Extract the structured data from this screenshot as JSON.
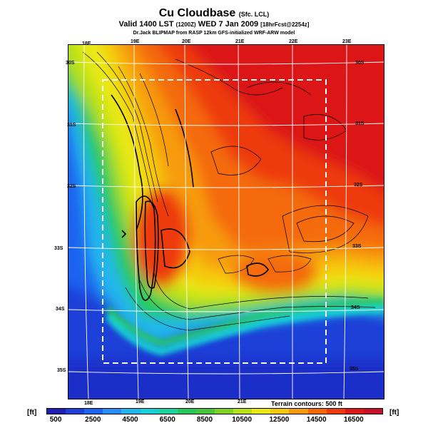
{
  "header": {
    "title": "Cu Cloudbase",
    "title_suffix": "(Sfc. LCL)",
    "subtitle_main": "Valid 1400 LST",
    "subtitle_zulu": "(1200Z)",
    "subtitle_date": "WED 7 Jan 2009",
    "subtitle_fcst": "[18hrFcst@2254z]",
    "source_line": "Dr.Jack BLIPMAP from RASP 12km GFS-initialized WRF-ARW model"
  },
  "map": {
    "lon_labels_top": [
      "18E",
      "19E",
      "20E",
      "21E",
      "22E",
      "23E"
    ],
    "lon_labels_bottom": [
      "18E",
      "19E",
      "20E",
      "21E"
    ],
    "lat_labels_left": [
      "30S",
      "31S",
      "32S",
      "33S",
      "34S",
      "35S"
    ],
    "lat_labels_right": [
      "30S",
      "31S",
      "32S",
      "33S",
      "34S",
      "35S"
    ],
    "terrain_note": "Terrain contours: 500 ft"
  },
  "colorbar": {
    "unit_left": "[ft]",
    "unit_right": "[ft]",
    "labels": [
      "500",
      "2500",
      "4500",
      "6500",
      "8500",
      "10500",
      "12500",
      "14500",
      "16500"
    ],
    "colors": [
      "#1f1fb0",
      "#1e3fd8",
      "#1f64f0",
      "#2a8cf5",
      "#22b6ee",
      "#18d1d4",
      "#1ed49e",
      "#25c95a",
      "#48c63a",
      "#7ed224",
      "#b8e119",
      "#ebe915",
      "#f6c80f",
      "#f79b0c",
      "#f46a0a",
      "#ee3a0f",
      "#dc1919",
      "#c8102a"
    ]
  }
}
